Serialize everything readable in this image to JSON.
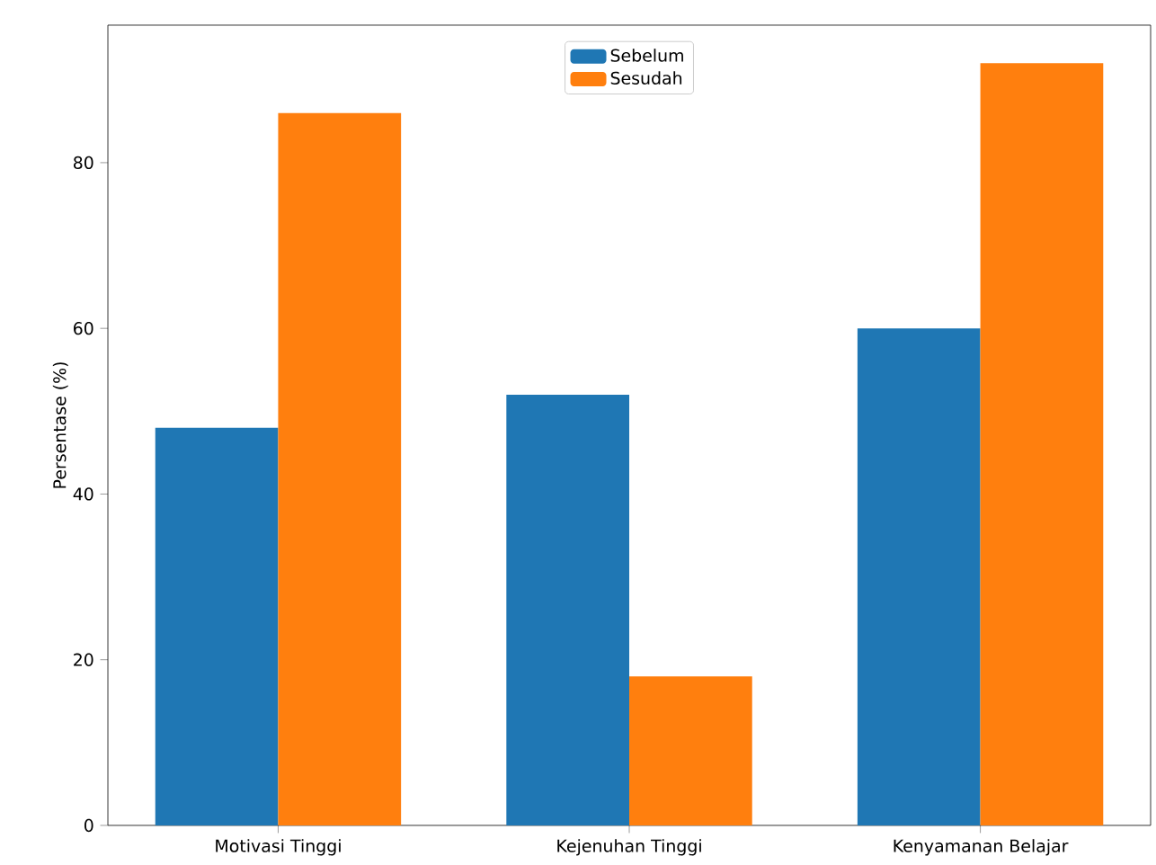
{
  "chart_data": {
    "type": "bar",
    "ylabel": "Persentase (%)",
    "categories": [
      "Motivasi Tinggi",
      "Kejenuhan Tinggi",
      "Kenyamanan Belajar"
    ],
    "series": [
      {
        "name": "Sebelum",
        "color": "#1f77b4",
        "values": [
          48,
          52,
          60
        ]
      },
      {
        "name": "Sesudah",
        "color": "#ff7f0e",
        "values": [
          86,
          18,
          92
        ]
      }
    ],
    "ylim": [
      0,
      96.6
    ],
    "yticks": [
      0,
      20,
      40,
      60,
      80
    ],
    "legend": "top",
    "grid": false
  }
}
